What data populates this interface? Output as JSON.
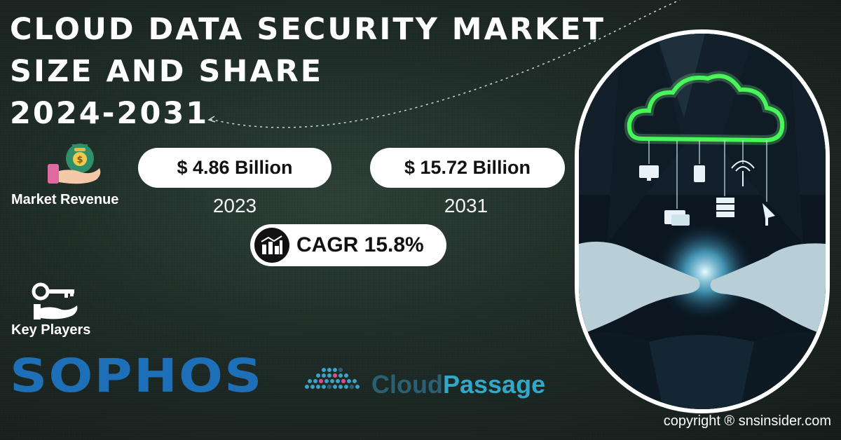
{
  "title": {
    "line1": "CLOUD DATA SECURITY MARKET",
    "line2": "SIZE AND SHARE",
    "line3": "2024-2031"
  },
  "market_revenue_label": "Market Revenue",
  "metrics": [
    {
      "value": "$ 4.86 Billion",
      "year": "2023"
    },
    {
      "value": "$ 15.72 Billion",
      "year": "2031"
    }
  ],
  "cagr": "CAGR 15.8%",
  "key_players_label": "Key Players",
  "players": {
    "sophos": "SOPHOS",
    "cloudpassage_a": "Cloud",
    "cloudpassage_b": "Passage"
  },
  "copyright": "copyright ® snsinsider.com",
  "colors": {
    "background": "#1e2b26",
    "sophos_blue": "#1d6fb8",
    "cloudpassage_dark": "#2b5f73",
    "cloudpassage_light": "#33a7c8",
    "cloud_glow": "#39ff4a"
  }
}
